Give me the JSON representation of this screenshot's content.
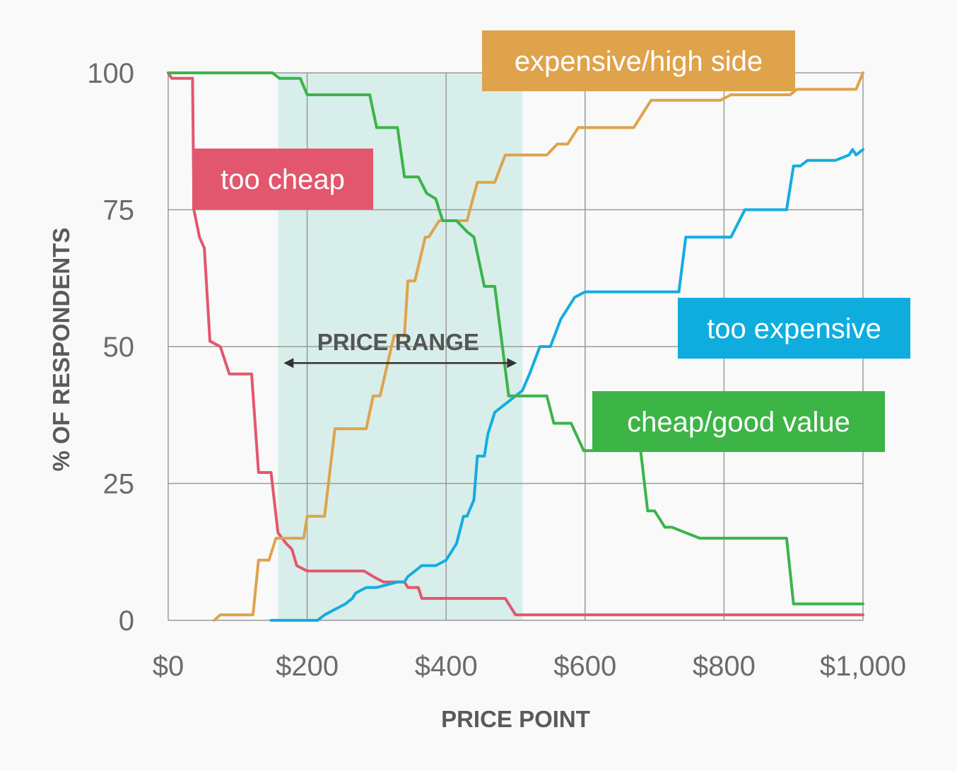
{
  "chart_data": {
    "type": "line",
    "title": "",
    "xlabel": "PRICE POINT",
    "ylabel": "% OF RESPONDENTS",
    "xlim": [
      0,
      1000
    ],
    "ylim": [
      0,
      100
    ],
    "x_ticks": [
      {
        "value": 0,
        "label": "$0"
      },
      {
        "value": 200,
        "label": "$200"
      },
      {
        "value": 400,
        "label": "$400"
      },
      {
        "value": 600,
        "label": "$600"
      },
      {
        "value": 800,
        "label": "$800"
      },
      {
        "value": 1000,
        "label": "$1,000"
      }
    ],
    "y_ticks": [
      {
        "value": 0,
        "label": "0"
      },
      {
        "value": 25,
        "label": "25"
      },
      {
        "value": 50,
        "label": "50"
      },
      {
        "value": 75,
        "label": "75"
      },
      {
        "value": 100,
        "label": "100"
      }
    ],
    "grid": true,
    "annotation": {
      "label": "PRICE RANGE",
      "x_start": 158,
      "x_end": 510,
      "arrow_y": 47,
      "shade_color": "#d8eeea"
    },
    "series": [
      {
        "name": "too cheap",
        "color": "#e2576d",
        "label_bg": "#e2576d",
        "points": [
          [
            0,
            100
          ],
          [
            5,
            99
          ],
          [
            20,
            99
          ],
          [
            35,
            99
          ],
          [
            37,
            75
          ],
          [
            45,
            70
          ],
          [
            52,
            68
          ],
          [
            60,
            51
          ],
          [
            75,
            50
          ],
          [
            88,
            45
          ],
          [
            120,
            45
          ],
          [
            130,
            27
          ],
          [
            148,
            27
          ],
          [
            158,
            16
          ],
          [
            170,
            14
          ],
          [
            178,
            13
          ],
          [
            185,
            10
          ],
          [
            200,
            9
          ],
          [
            210,
            9
          ],
          [
            280,
            9
          ],
          [
            282,
            9
          ],
          [
            295,
            8
          ],
          [
            310,
            7
          ],
          [
            340,
            7
          ],
          [
            345,
            6
          ],
          [
            360,
            6
          ],
          [
            365,
            4
          ],
          [
            450,
            4
          ],
          [
            485,
            4
          ],
          [
            500,
            1
          ],
          [
            1000,
            1
          ]
        ]
      },
      {
        "name": "expensive/high side",
        "color": "#dfa34c",
        "label_bg": "#dfa34c",
        "points": [
          [
            66,
            0
          ],
          [
            75,
            1
          ],
          [
            96,
            1
          ],
          [
            122,
            1
          ],
          [
            130,
            11
          ],
          [
            145,
            11
          ],
          [
            155,
            15
          ],
          [
            168,
            15
          ],
          [
            195,
            15
          ],
          [
            200,
            19
          ],
          [
            225,
            19
          ],
          [
            240,
            35
          ],
          [
            285,
            35
          ],
          [
            295,
            41
          ],
          [
            305,
            41
          ],
          [
            325,
            52
          ],
          [
            340,
            52
          ],
          [
            345,
            62
          ],
          [
            355,
            62
          ],
          [
            370,
            70
          ],
          [
            375,
            70
          ],
          [
            390,
            73
          ],
          [
            415,
            73
          ],
          [
            430,
            73
          ],
          [
            445,
            80
          ],
          [
            470,
            80
          ],
          [
            485,
            85
          ],
          [
            510,
            85
          ],
          [
            545,
            85
          ],
          [
            560,
            87
          ],
          [
            575,
            87
          ],
          [
            590,
            90
          ],
          [
            605,
            90
          ],
          [
            670,
            90
          ],
          [
            695,
            95
          ],
          [
            720,
            95
          ],
          [
            795,
            95
          ],
          [
            810,
            96
          ],
          [
            895,
            96
          ],
          [
            905,
            97
          ],
          [
            990,
            97
          ],
          [
            1000,
            100
          ]
        ]
      },
      {
        "name": "too expensive",
        "color": "#15ace0",
        "label_bg": "#0fadde",
        "points": [
          [
            148,
            0
          ],
          [
            155,
            0
          ],
          [
            215,
            0
          ],
          [
            225,
            1
          ],
          [
            240,
            2
          ],
          [
            255,
            3
          ],
          [
            265,
            4
          ],
          [
            270,
            5
          ],
          [
            285,
            6
          ],
          [
            300,
            6
          ],
          [
            330,
            7
          ],
          [
            340,
            7
          ],
          [
            345,
            8
          ],
          [
            355,
            9
          ],
          [
            365,
            10
          ],
          [
            375,
            10
          ],
          [
            385,
            10
          ],
          [
            400,
            11
          ],
          [
            415,
            14
          ],
          [
            425,
            19
          ],
          [
            430,
            19
          ],
          [
            440,
            22
          ],
          [
            445,
            30
          ],
          [
            455,
            30
          ],
          [
            460,
            34
          ],
          [
            470,
            38
          ],
          [
            490,
            40
          ],
          [
            510,
            42
          ],
          [
            520,
            45
          ],
          [
            535,
            50
          ],
          [
            550,
            50
          ],
          [
            565,
            55
          ],
          [
            585,
            59
          ],
          [
            600,
            60
          ],
          [
            690,
            60
          ],
          [
            735,
            60
          ],
          [
            745,
            70
          ],
          [
            770,
            70
          ],
          [
            790,
            70
          ],
          [
            810,
            70
          ],
          [
            830,
            75
          ],
          [
            890,
            75
          ],
          [
            900,
            83
          ],
          [
            910,
            83
          ],
          [
            920,
            84
          ],
          [
            935,
            84
          ],
          [
            960,
            84
          ],
          [
            980,
            85
          ],
          [
            985,
            86
          ],
          [
            990,
            85
          ],
          [
            1000,
            86
          ]
        ]
      },
      {
        "name": "cheap/good value",
        "color": "#3cb44a",
        "label_bg": "#3db446",
        "points": [
          [
            0,
            100
          ],
          [
            150,
            100
          ],
          [
            160,
            99
          ],
          [
            190,
            99
          ],
          [
            200,
            96
          ],
          [
            245,
            96
          ],
          [
            290,
            96
          ],
          [
            300,
            90
          ],
          [
            330,
            90
          ],
          [
            340,
            81
          ],
          [
            360,
            81
          ],
          [
            372,
            78
          ],
          [
            385,
            77
          ],
          [
            395,
            73
          ],
          [
            415,
            73
          ],
          [
            430,
            71
          ],
          [
            440,
            70
          ],
          [
            455,
            61
          ],
          [
            470,
            61
          ],
          [
            490,
            41
          ],
          [
            545,
            41
          ],
          [
            555,
            36
          ],
          [
            580,
            36
          ],
          [
            598,
            31
          ],
          [
            650,
            31
          ],
          [
            680,
            31
          ],
          [
            690,
            20
          ],
          [
            700,
            20
          ],
          [
            710,
            18
          ],
          [
            715,
            17
          ],
          [
            725,
            17
          ],
          [
            745,
            16
          ],
          [
            765,
            15
          ],
          [
            890,
            15
          ],
          [
            900,
            3
          ],
          [
            990,
            3
          ],
          [
            1000,
            3
          ]
        ]
      }
    ]
  }
}
